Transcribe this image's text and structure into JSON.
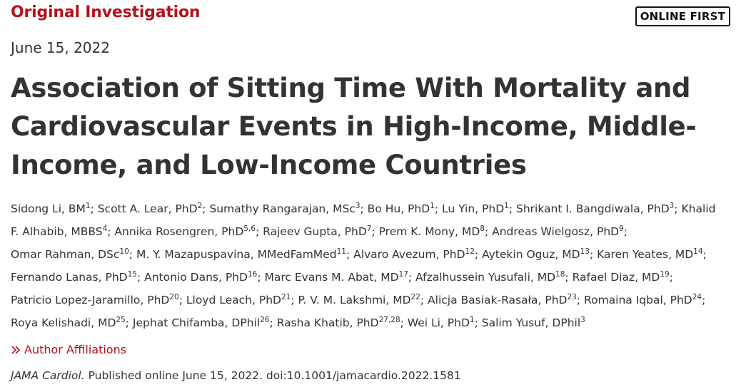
{
  "header": {
    "section_label": "Original Investigation",
    "badge": "ONLINE FIRST"
  },
  "article": {
    "date": "June 15, 2022",
    "title_lines": [
      "Association of Sitting Time With Mortality and",
      "Cardiovascular Events in High-Income, Middle-",
      "Income, and Low-Income Countries"
    ],
    "author_lines": [
      [
        {
          "t": "Sidong Li, BM"
        },
        {
          "s": "1"
        },
        {
          "t": "; Scott A. Lear, PhD"
        },
        {
          "s": "2"
        },
        {
          "t": "; Sumathy Rangarajan, MSc"
        },
        {
          "s": "3"
        },
        {
          "t": "; Bo Hu, PhD"
        },
        {
          "s": "1"
        },
        {
          "t": "; Lu Yin, PhD"
        },
        {
          "s": "1"
        },
        {
          "t": "; Shrikant I. Bangdiwala, PhD"
        },
        {
          "s": "3"
        },
        {
          "t": "; Khalid"
        }
      ],
      [
        {
          "t": "F. Alhabib, MBBS"
        },
        {
          "s": "4"
        },
        {
          "t": "; Annika Rosengren, PhD"
        },
        {
          "s": "5,6"
        },
        {
          "t": "; Rajeev Gupta, PhD"
        },
        {
          "s": "7"
        },
        {
          "t": "; Prem K. Mony, MD"
        },
        {
          "s": "8"
        },
        {
          "t": "; Andreas Wielgosz, PhD"
        },
        {
          "s": "9"
        },
        {
          "t": ";"
        }
      ],
      [
        {
          "t": "Omar Rahman, DSc"
        },
        {
          "s": "10"
        },
        {
          "t": "; M. Y. Mazapuspavina, MMedFamMed"
        },
        {
          "s": "11"
        },
        {
          "t": "; Alvaro Avezum, PhD"
        },
        {
          "s": "12"
        },
        {
          "t": "; Aytekin Oguz, MD"
        },
        {
          "s": "13"
        },
        {
          "t": "; Karen Yeates, MD"
        },
        {
          "s": "14"
        },
        {
          "t": ";"
        }
      ],
      [
        {
          "t": "Fernando Lanas, PhD"
        },
        {
          "s": "15"
        },
        {
          "t": "; Antonio Dans, PhD"
        },
        {
          "s": "16"
        },
        {
          "t": "; Marc Evans M. Abat, MD"
        },
        {
          "s": "17"
        },
        {
          "t": "; Afzalhussein Yusufali, MD"
        },
        {
          "s": "18"
        },
        {
          "t": "; Rafael Diaz, MD"
        },
        {
          "s": "19"
        },
        {
          "t": ";"
        }
      ],
      [
        {
          "t": "Patricio Lopez-Jaramillo, PhD"
        },
        {
          "s": "20"
        },
        {
          "t": "; Lloyd Leach, PhD"
        },
        {
          "s": "21"
        },
        {
          "t": "; P. V. M. Lakshmi, MD"
        },
        {
          "s": "22"
        },
        {
          "t": "; Alicja Basiak-Rasała, PhD"
        },
        {
          "s": "23"
        },
        {
          "t": "; Romaina Iqbal, PhD"
        },
        {
          "s": "24"
        },
        {
          "t": ";"
        }
      ],
      [
        {
          "t": "Roya Kelishadi, MD"
        },
        {
          "s": "25"
        },
        {
          "t": "; Jephat Chifamba, DPhil"
        },
        {
          "s": "26"
        },
        {
          "t": "; Rasha Khatib, PhD"
        },
        {
          "s": "27,28"
        },
        {
          "t": "; Wei Li, PhD"
        },
        {
          "s": "1"
        },
        {
          "t": "; Salim Yusuf, DPhil"
        },
        {
          "s": "3"
        }
      ]
    ],
    "affiliations_link": "Author Affiliations",
    "citation_journal": "JAMA Cardiol.",
    "citation_rest": " Published online June 15, 2022. doi:10.1001/jamacardio.2022.1581"
  },
  "colors": {
    "accent": "#b5121b",
    "text": "#333333"
  },
  "icons": {
    "affiliations": "double-chevron-right-icon"
  }
}
